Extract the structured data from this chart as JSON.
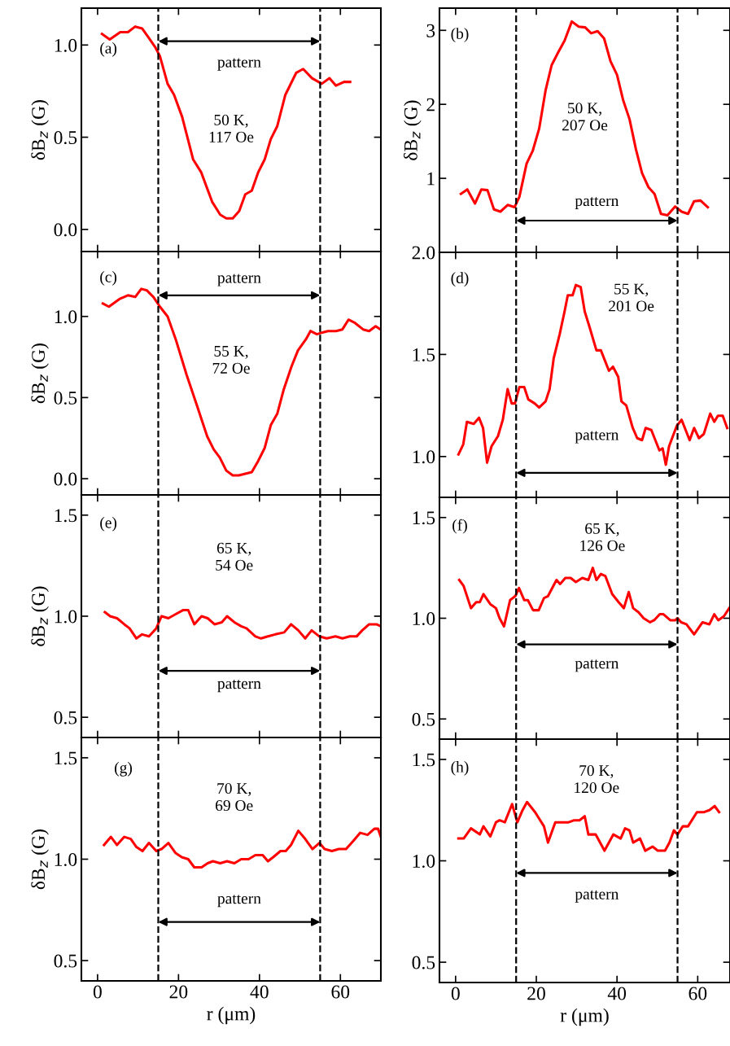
{
  "chart_data": [
    {
      "type": "line",
      "title": "(a)",
      "ylabel": "δB$_{z}$ (G)",
      "tick_labels": "y",
      "xlim": [
        -4,
        70
      ],
      "ylim": [
        -0.12,
        1.2
      ],
      "xticks": [
        0,
        20,
        40,
        60
      ],
      "yticks": [
        {
          "value": 0,
          "label": "0.0"
        },
        {
          "value": 0.5,
          "label": "0.5"
        },
        {
          "value": 1,
          "label": "1.0"
        }
      ],
      "x": [
        1.1,
        3.0,
        5.6,
        7.5,
        9.3,
        11,
        12.6,
        14.2,
        15.4,
        17.3,
        18.9,
        20.9,
        23.6,
        25.6,
        28.3,
        30.3,
        31.8,
        33.4,
        35,
        36.5,
        38.1,
        39.7,
        41.3,
        42.8,
        44.4,
        46.4,
        49.1,
        50.8,
        53,
        55.4,
        57.3,
        58.9,
        60.9,
        62.4
      ],
      "series": [
        {
          "color": "#ff0000",
          "values": [
            1.06,
            1.03,
            1.07,
            1.07,
            1.1,
            1.09,
            1.04,
            0.99,
            0.94,
            0.79,
            0.73,
            0.61,
            0.38,
            0.31,
            0.15,
            0.08,
            0.06,
            0.06,
            0.1,
            0.19,
            0.21,
            0.31,
            0.38,
            0.49,
            0.56,
            0.73,
            0.85,
            0.87,
            0.82,
            0.79,
            0.82,
            0.78,
            0.8,
            0.8
          ]
        }
      ],
      "ref_lines": [
        {
          "axis": "x",
          "value": 15,
          "color": "#000000",
          "line_style": "dashed"
        },
        {
          "axis": "x",
          "value": 55,
          "color": "#000000",
          "line_style": "dashed"
        }
      ],
      "annotations": [
        "50 K,\n117 Oe",
        "pattern"
      ]
    },
    {
      "type": "line",
      "title": "(b)",
      "ylabel": "δB$_{z}$ (G)",
      "tick_labels": "y",
      "xlim": [
        -4,
        68
      ],
      "ylim": [
        0,
        3.3
      ],
      "xticks": [
        0,
        20,
        40,
        60
      ],
      "yticks": [
        1,
        2,
        3
      ],
      "x": [
        1.3,
        2.9,
        4.8,
        6.4,
        7.9,
        9.5,
        11.1,
        12.9,
        14.6,
        15.8,
        17.6,
        19.1,
        20.7,
        22.3,
        23.8,
        25.4,
        27,
        28.8,
        30.5,
        32.1,
        33.6,
        35.2,
        36.8,
        38.4,
        40,
        41.5,
        43.1,
        44.7,
        46.2,
        47.8,
        49.3,
        50.9,
        52.5,
        54.4,
        56,
        57.6,
        59.1,
        60.7,
        62.5
      ],
      "series": [
        {
          "color": "#ff0000",
          "values": [
            0.79,
            0.85,
            0.66,
            0.85,
            0.84,
            0.58,
            0.55,
            0.64,
            0.61,
            0.75,
            1.2,
            1.37,
            1.67,
            2.19,
            2.53,
            2.7,
            2.86,
            3.12,
            3.05,
            3.04,
            2.96,
            2.99,
            2.89,
            2.58,
            2.4,
            2.06,
            1.8,
            1.39,
            1.07,
            0.88,
            0.79,
            0.52,
            0.5,
            0.62,
            0.55,
            0.52,
            0.69,
            0.7,
            0.61
          ]
        }
      ],
      "ref_lines": [
        {
          "axis": "x",
          "value": 15,
          "color": "#000000",
          "line_style": "dashed"
        },
        {
          "axis": "x",
          "value": 55,
          "color": "#000000",
          "line_style": "dashed"
        }
      ],
      "annotations": [
        "50 K,\n207 Oe",
        "pattern"
      ]
    },
    {
      "type": "line",
      "title": "(c)",
      "ylabel": "δB$_{z}$ (G)",
      "tick_labels": "y",
      "xlim": [
        -4,
        70
      ],
      "ylim": [
        -0.1,
        1.4
      ],
      "xticks": [
        0,
        20,
        40,
        60
      ],
      "yticks": [
        {
          "value": 0,
          "label": "0.0"
        },
        {
          "value": 0.5,
          "label": "0.5"
        },
        {
          "value": 1,
          "label": "1.0"
        }
      ],
      "x": [
        1.3,
        2.8,
        5.6,
        7.5,
        9.3,
        10.8,
        12.2,
        13.8,
        15.4,
        17.3,
        19.3,
        22,
        24.7,
        27.1,
        28.7,
        30.2,
        31.8,
        33.4,
        34.9,
        36.5,
        38.1,
        39.7,
        41.3,
        42.8,
        44.4,
        46,
        47.9,
        49.5,
        51.5,
        52.6,
        54.2,
        55.4,
        56.9,
        58.9,
        60.5,
        62,
        63.6,
        65.6,
        67.1,
        68.7,
        69.9
      ],
      "series": [
        {
          "color": "#ff0000",
          "values": [
            1.08,
            1.06,
            1.11,
            1.13,
            1.12,
            1.17,
            1.16,
            1.12,
            1.06,
            1.0,
            0.86,
            0.64,
            0.44,
            0.26,
            0.18,
            0.13,
            0.05,
            0.02,
            0.02,
            0.03,
            0.04,
            0.11,
            0.19,
            0.33,
            0.4,
            0.55,
            0.69,
            0.79,
            0.86,
            0.91,
            0.89,
            0.9,
            0.91,
            0.91,
            0.92,
            0.98,
            0.96,
            0.92,
            0.91,
            0.94,
            0.92
          ]
        }
      ],
      "ref_lines": [
        {
          "axis": "x",
          "value": 15,
          "color": "#000000",
          "line_style": "dashed"
        },
        {
          "axis": "x",
          "value": 55,
          "color": "#000000",
          "line_style": "dashed"
        }
      ],
      "annotations": [
        "55 K,\n72 Oe",
        "pattern"
      ]
    },
    {
      "type": "line",
      "title": "(d)",
      "tick_labels": "y",
      "xlim": [
        -4,
        68
      ],
      "ylim": [
        0.8,
        2.0
      ],
      "xticks": [
        0,
        20,
        40,
        60
      ],
      "yticks": [
        {
          "value": 1,
          "label": "1.0"
        },
        {
          "value": 1.5,
          "label": "1.5"
        },
        {
          "value": 2,
          "label": "2.0"
        }
      ],
      "x": [
        0.7,
        1.9,
        2.8,
        4.5,
        5.8,
        6.8,
        7.8,
        8.9,
        10.5,
        11.7,
        12.9,
        13.9,
        14.7,
        15.8,
        17,
        18,
        19.6,
        20.7,
        22.3,
        23.3,
        24.3,
        25.8,
        27,
        27.8,
        29,
        29.8,
        31,
        32,
        33.1,
        34.9,
        36,
        38,
        39,
        40.3,
        41.1,
        42.3,
        43.9,
        45,
        46.2,
        47.1,
        48.5,
        50.5,
        51.3,
        52.1,
        52.9,
        54.8,
        56,
        58,
        59.1,
        60.3,
        61.5,
        63.1,
        64.1,
        65,
        66.2,
        67.3
      ],
      "series": [
        {
          "color": "#ff0000",
          "values": [
            1.01,
            1.06,
            1.17,
            1.16,
            1.19,
            1.14,
            0.97,
            1.05,
            1.1,
            1.18,
            1.33,
            1.26,
            1.26,
            1.34,
            1.34,
            1.28,
            1.26,
            1.24,
            1.27,
            1.33,
            1.48,
            1.6,
            1.71,
            1.79,
            1.79,
            1.84,
            1.83,
            1.71,
            1.64,
            1.52,
            1.52,
            1.42,
            1.44,
            1.39,
            1.27,
            1.25,
            1.14,
            1.09,
            1.08,
            1.14,
            1.13,
            1.03,
            1.04,
            0.96,
            1.05,
            1.15,
            1.18,
            1.08,
            1.14,
            1.09,
            1.11,
            1.21,
            1.17,
            1.2,
            1.2,
            1.14
          ]
        }
      ],
      "ref_lines": [
        {
          "axis": "x",
          "value": 15,
          "color": "#000000",
          "line_style": "dashed"
        },
        {
          "axis": "x",
          "value": 55,
          "color": "#000000",
          "line_style": "dashed"
        }
      ],
      "annotations": [
        "55 K,\n201 Oe",
        "pattern"
      ]
    },
    {
      "type": "line",
      "title": "(e)",
      "ylabel": "δB$_{z}$ (G)",
      "tick_labels": "y",
      "xlim": [
        -4,
        70
      ],
      "ylim": [
        0.4,
        1.6
      ],
      "xticks": [
        0,
        20,
        40,
        60
      ],
      "yticks": [
        {
          "value": 0.5,
          "label": "0.5"
        },
        {
          "value": 1,
          "label": "1.0"
        },
        {
          "value": 1.5,
          "label": "1.5"
        }
      ],
      "x": [
        1.8,
        3.1,
        4.8,
        6.6,
        7.9,
        9.6,
        11,
        12.7,
        14.5,
        15.8,
        17.5,
        19.3,
        21.1,
        22.4,
        23.9,
        25.7,
        27.2,
        28.9,
        30.7,
        32,
        33.8,
        35.5,
        36.8,
        39,
        40.4,
        42.1,
        43.9,
        46.1,
        47.8,
        49.6,
        51.3,
        52.9,
        54.8,
        56.6,
        58.8,
        60.5,
        62.3,
        64,
        65.4,
        67.1,
        68.9,
        70
      ],
      "series": [
        {
          "color": "#ff0000",
          "values": [
            1.02,
            1.0,
            0.99,
            0.96,
            0.94,
            0.89,
            0.91,
            0.9,
            0.94,
            1.0,
            0.99,
            1.01,
            1.03,
            1.03,
            0.96,
            1.0,
            0.99,
            0.96,
            0.97,
            1.0,
            0.97,
            0.95,
            0.94,
            0.9,
            0.89,
            0.9,
            0.91,
            0.92,
            0.96,
            0.93,
            0.89,
            0.93,
            0.9,
            0.89,
            0.9,
            0.89,
            0.9,
            0.9,
            0.93,
            0.96,
            0.96,
            0.95
          ]
        }
      ],
      "ref_lines": [
        {
          "axis": "x",
          "value": 15,
          "color": "#000000",
          "line_style": "dashed"
        },
        {
          "axis": "x",
          "value": 55,
          "color": "#000000",
          "line_style": "dashed"
        }
      ],
      "annotations": [
        "65 K,\n54 Oe",
        "pattern"
      ]
    },
    {
      "type": "line",
      "title": "(f)",
      "tick_labels": "y",
      "xlim": [
        -4,
        68
      ],
      "ylim": [
        0.4,
        1.6
      ],
      "xticks": [
        0,
        20,
        40,
        60
      ],
      "yticks": [
        {
          "value": 0.5,
          "label": "0.5"
        },
        {
          "value": 1,
          "label": "1.0"
        },
        {
          "value": 1.5,
          "label": "1.5"
        }
      ],
      "x": [
        0.9,
        2,
        3.8,
        5.1,
        6,
        6.9,
        8.6,
        10,
        10.9,
        12,
        13.5,
        14.8,
        15.7,
        17,
        17.9,
        19.2,
        20.6,
        21.9,
        22.9,
        25,
        25.9,
        27.2,
        28.5,
        29.8,
        31.4,
        32.9,
        34,
        34.9,
        36,
        37.1,
        38.8,
        40.4,
        41.7,
        42.9,
        44,
        45.3,
        46.6,
        48.2,
        49.2,
        50.6,
        51.5,
        53.2,
        54.4,
        55,
        55.9,
        57.2,
        59.1,
        61.2,
        62.9,
        64.1,
        65.1,
        66.5,
        67.8
      ],
      "series": [
        {
          "color": "#ff0000",
          "values": [
            1.19,
            1.16,
            1.05,
            1.08,
            1.08,
            1.12,
            1.07,
            1.05,
            1.0,
            0.96,
            1.09,
            1.11,
            1.15,
            1.09,
            1.09,
            1.04,
            1.04,
            1.1,
            1.11,
            1.19,
            1.17,
            1.2,
            1.2,
            1.18,
            1.2,
            1.19,
            1.25,
            1.19,
            1.22,
            1.21,
            1.12,
            1.08,
            1.05,
            1.13,
            1.05,
            1.03,
            1.0,
            0.98,
            0.99,
            1.02,
            1.02,
            0.99,
            0.99,
            1.0,
            0.98,
            0.97,
            0.92,
            0.98,
            0.97,
            1.02,
            0.99,
            1.01,
            1.05
          ]
        }
      ],
      "ref_lines": [
        {
          "axis": "x",
          "value": 15,
          "color": "#000000",
          "line_style": "dashed"
        },
        {
          "axis": "x",
          "value": 55,
          "color": "#000000",
          "line_style": "dashed"
        }
      ],
      "annotations": [
        "65 K,\n126 Oe",
        "pattern"
      ]
    },
    {
      "type": "line",
      "title": "(g)",
      "ylabel": "δB$_{z}$ (G)",
      "xlabel": "r (μm)",
      "xlim": [
        -4,
        70
      ],
      "ylim": [
        0.4,
        1.6
      ],
      "xticks": [
        0,
        20,
        40,
        60
      ],
      "yticks": [
        {
          "value": 0.5,
          "label": "0.5"
        },
        {
          "value": 1,
          "label": "1.0"
        },
        {
          "value": 1.5,
          "label": "1.5"
        }
      ],
      "x": [
        1.6,
        3.3,
        4.8,
        6.6,
        8.2,
        9.6,
        11.1,
        12.7,
        14.5,
        15.8,
        17.5,
        19.3,
        20.8,
        22.4,
        23.9,
        25.7,
        27.2,
        28.5,
        30.3,
        32,
        33.8,
        35.5,
        37.3,
        39,
        40.8,
        42.1,
        43.4,
        45.2,
        46.5,
        47.8,
        49.6,
        51.3,
        53.1,
        54.8,
        56.1,
        57.9,
        59.6,
        61.4,
        63.2,
        64.9,
        66.7,
        68.4,
        69.3,
        70
      ],
      "series": [
        {
          "color": "#ff0000",
          "values": [
            1.07,
            1.11,
            1.07,
            1.11,
            1.1,
            1.06,
            1.04,
            1.08,
            1.04,
            1.05,
            1.08,
            1.03,
            1.01,
            1.0,
            0.96,
            0.96,
            0.98,
            0.99,
            0.98,
            0.99,
            0.98,
            1.0,
            1.0,
            1.02,
            1.02,
            0.99,
            1.01,
            1.04,
            1.04,
            1.07,
            1.14,
            1.1,
            1.05,
            1.08,
            1.05,
            1.04,
            1.05,
            1.05,
            1.09,
            1.13,
            1.12,
            1.15,
            1.15,
            1.11
          ]
        }
      ],
      "ref_lines": [
        {
          "axis": "x",
          "value": 15,
          "color": "#000000",
          "line_style": "dashed"
        },
        {
          "axis": "x",
          "value": 55,
          "color": "#000000",
          "line_style": "dashed"
        }
      ],
      "annotations": [
        "70 K,\n69 Oe",
        "pattern"
      ]
    },
    {
      "type": "line",
      "title": "(h)",
      "xlabel": "r (μm)",
      "xlim": [
        -4,
        68
      ],
      "ylim": [
        0.4,
        1.6
      ],
      "xticks": [
        0,
        20,
        40,
        60
      ],
      "yticks": [
        {
          "value": 0.5,
          "label": "0.5"
        },
        {
          "value": 1,
          "label": "1.0"
        },
        {
          "value": 1.5,
          "label": "1.5"
        }
      ],
      "x": [
        0.7,
        2,
        3.8,
        6,
        6.9,
        8.6,
        10,
        10.9,
        12.2,
        14,
        15.3,
        16.6,
        17.7,
        19.7,
        21.9,
        22.9,
        24.7,
        26.1,
        28,
        29.4,
        30.7,
        32,
        32.9,
        34.7,
        36.9,
        39.1,
        40.9,
        42,
        43.1,
        44,
        45.7,
        47,
        48.8,
        50.1,
        51.9,
        53,
        54.1,
        55,
        56.3,
        57.6,
        59.8,
        61.6,
        62.9,
        64.2,
        65.3
      ],
      "series": [
        {
          "color": "#ff0000",
          "values": [
            1.11,
            1.11,
            1.16,
            1.13,
            1.17,
            1.12,
            1.19,
            1.2,
            1.19,
            1.28,
            1.19,
            1.25,
            1.29,
            1.24,
            1.17,
            1.09,
            1.19,
            1.19,
            1.19,
            1.2,
            1.2,
            1.22,
            1.13,
            1.13,
            1.05,
            1.13,
            1.11,
            1.16,
            1.15,
            1.09,
            1.11,
            1.05,
            1.07,
            1.05,
            1.05,
            1.09,
            1.15,
            1.13,
            1.17,
            1.17,
            1.24,
            1.24,
            1.25,
            1.27,
            1.24
          ]
        }
      ],
      "ref_lines": [
        {
          "axis": "x",
          "value": 15,
          "color": "#000000",
          "line_style": "dashed"
        },
        {
          "axis": "x",
          "value": 55,
          "color": "#000000",
          "line_style": "dashed"
        }
      ],
      "annotations": [
        "70 K,\n120 Oe",
        "pattern"
      ]
    }
  ]
}
